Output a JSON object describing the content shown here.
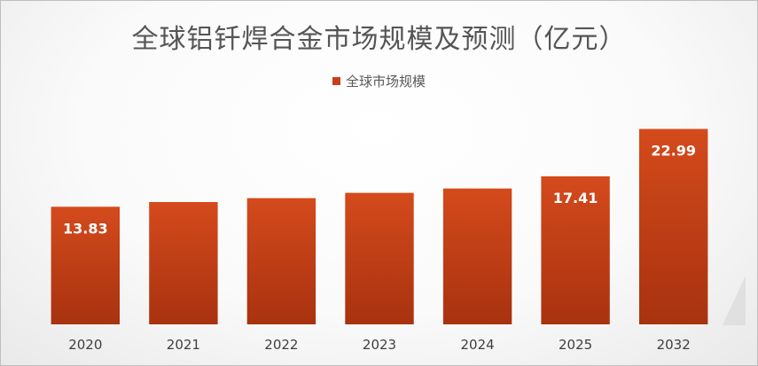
{
  "chart_data": {
    "type": "bar",
    "title": "全球铝钎焊合金市场规模及预测（亿元）",
    "categories": [
      "2020",
      "2021",
      "2022",
      "2023",
      "2024",
      "2025",
      "2032"
    ],
    "series": [
      {
        "name": "全球市场规模",
        "values": [
          13.83,
          14.39,
          14.85,
          15.47,
          15.98,
          17.41,
          22.99
        ]
      }
    ],
    "data_labels": [
      "13.83",
      "",
      "",
      "",
      "",
      "17.41",
      "22.99"
    ],
    "ylim": [
      0,
      24.5
    ],
    "grid": false,
    "legend_position": "top",
    "colors": {
      "bar_top": "#D44A1C",
      "bar_bottom": "#A8320F"
    }
  }
}
